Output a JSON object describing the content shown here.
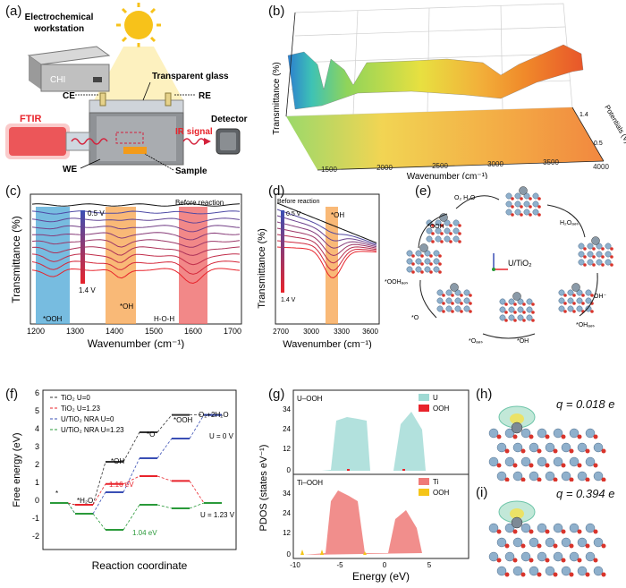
{
  "panels": {
    "a": {
      "label": "(a)",
      "workstation": "Electrochemical\nworkstation",
      "chi": "CHI",
      "glass": "Transparent glass",
      "ce": "CE",
      "re": "RE",
      "ftir": "FTIR",
      "ir_signal": "IR signal",
      "detector": "Detector",
      "we": "WE",
      "sample": "Sample"
    },
    "b": {
      "label": "(b)",
      "ylabel": "Transmittance (%)",
      "xlabel": "Wavenumber  (cm⁻¹)",
      "zlabel": "Potentials (V)",
      "xticks": [
        "1500",
        "2000",
        "2500",
        "3000",
        "3500",
        "4000"
      ],
      "zticks": [
        "1.4",
        "0.5"
      ]
    },
    "c": {
      "label": "(c)",
      "ylabel": "Transmittance (%)",
      "xlabel": "Wavenumber (cm⁻¹)",
      "xticks": [
        "1200",
        "1300",
        "1400",
        "1500",
        "1600",
        "1700"
      ],
      "top_v": "0.5 V",
      "bottom_v": "1.4 V",
      "before": "Before reaction",
      "ooh": "*OOH",
      "oh": "*OH",
      "hoh": "H-O-H"
    },
    "d": {
      "label": "(d)",
      "ylabel": "Transmittance (%)",
      "xlabel": "Wavenumber (cm⁻¹)",
      "xticks": [
        "2700",
        "3000",
        "3300",
        "3600"
      ],
      "before": "Before reaction",
      "top_v": "0.5 V",
      "bottom_v": "1.4 V",
      "oh": "*OH"
    },
    "e": {
      "label": "(e)",
      "center": "U/TiO₂",
      "species": [
        "O₂ H₂O",
        "H₂Oₐₔₛ",
        "*OOH",
        "*OOHₐₔₛ",
        "*O",
        "*Oₐₔₛ",
        "*OH",
        "*OHₐₔₛ",
        "OH⁻"
      ]
    },
    "f": {
      "label": "(f)",
      "ylabel": "Free energy (eV)",
      "xlabel": "Reaction coordinate",
      "yticks": [
        "6",
        "5",
        "4",
        "3",
        "2",
        "1",
        "0",
        "-1",
        "-2"
      ],
      "legend": [
        "TiO₂ U=0",
        "TiO₂ U=1.23",
        "U/TiO₂ NRA U=0",
        "U/TiO₂ NRA U=1.23"
      ],
      "legend_colors": [
        "#333333",
        "#e8232b",
        "#3a4fb5",
        "#2a9a3a"
      ],
      "states": [
        "*",
        "*H₂O",
        "*OH",
        "*O",
        "*OOH",
        "O₂+2H₂O"
      ],
      "u0": "U = 0 V",
      "u123": "U = 1.23 V",
      "e116": "1.16 eV",
      "e104": "1.04 eV"
    },
    "g": {
      "label": "(g)",
      "ylabel": "PDOS (states eV⁻¹)",
      "xlabel": "Energy (eV)",
      "top_title": "U–OOH",
      "bottom_title": "Ti–OOH",
      "yticks_top": [
        "34",
        "24",
        "12",
        "0"
      ],
      "yticks_bottom": [
        "34",
        "24",
        "12",
        "0"
      ],
      "xticks": [
        "-10",
        "-5",
        "0",
        "5"
      ],
      "legend_top": [
        "U",
        "OOH"
      ],
      "legend_bottom": [
        "Ti",
        "OOH"
      ]
    },
    "h": {
      "label": "(h)",
      "q": "q = 0.018 e"
    },
    "i": {
      "label": "(i)",
      "q": "q = 0.394 e"
    }
  }
}
